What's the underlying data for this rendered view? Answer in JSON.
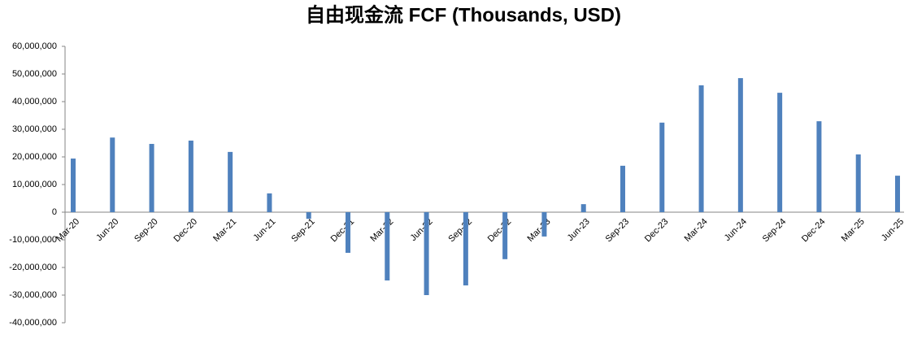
{
  "chart_data": {
    "type": "bar",
    "title": "自由现金流 FCF (Thousands, USD)",
    "categories": [
      "Mar-20",
      "Jun-20",
      "Sep-20",
      "Dec-20",
      "Mar-21",
      "Jun-21",
      "Sep-21",
      "Dec-21",
      "Mar-22",
      "Jun-22",
      "Sep-22",
      "Dec-22",
      "Mar-23",
      "Jun-23",
      "Sep-23",
      "Dec-23",
      "Mar-24",
      "Jun-24",
      "Sep-24",
      "Dec-24",
      "Mar-25",
      "Jun-25"
    ],
    "values": [
      19400000,
      27000000,
      24700000,
      25900000,
      21800000,
      6800000,
      -2400000,
      -14700000,
      -24700000,
      -30000000,
      -26500000,
      -17000000,
      -8800000,
      2900000,
      16800000,
      32400000,
      45900000,
      48500000,
      43200000,
      32900000,
      20900000,
      13200000
    ],
    "color": "#4f81bd",
    "ylim": [
      -40000000,
      60000000
    ],
    "yticks": [
      {
        "value": -40000000,
        "label": "-40,000,000"
      },
      {
        "value": -30000000,
        "label": "-30,000,000"
      },
      {
        "value": -20000000,
        "label": "-20,000,000"
      },
      {
        "value": -10000000,
        "label": "-10,000,000"
      },
      0,
      {
        "value": 10000000,
        "label": "10,000,000"
      },
      {
        "value": 20000000,
        "label": "20,000,000"
      },
      {
        "value": 30000000,
        "label": "30,000,000"
      },
      {
        "value": 40000000,
        "label": "40,000,000"
      },
      {
        "value": 50000000,
        "label": "50,000,000"
      },
      {
        "value": 60000000,
        "label": "60,000,000"
      }
    ],
    "grid": false
  }
}
